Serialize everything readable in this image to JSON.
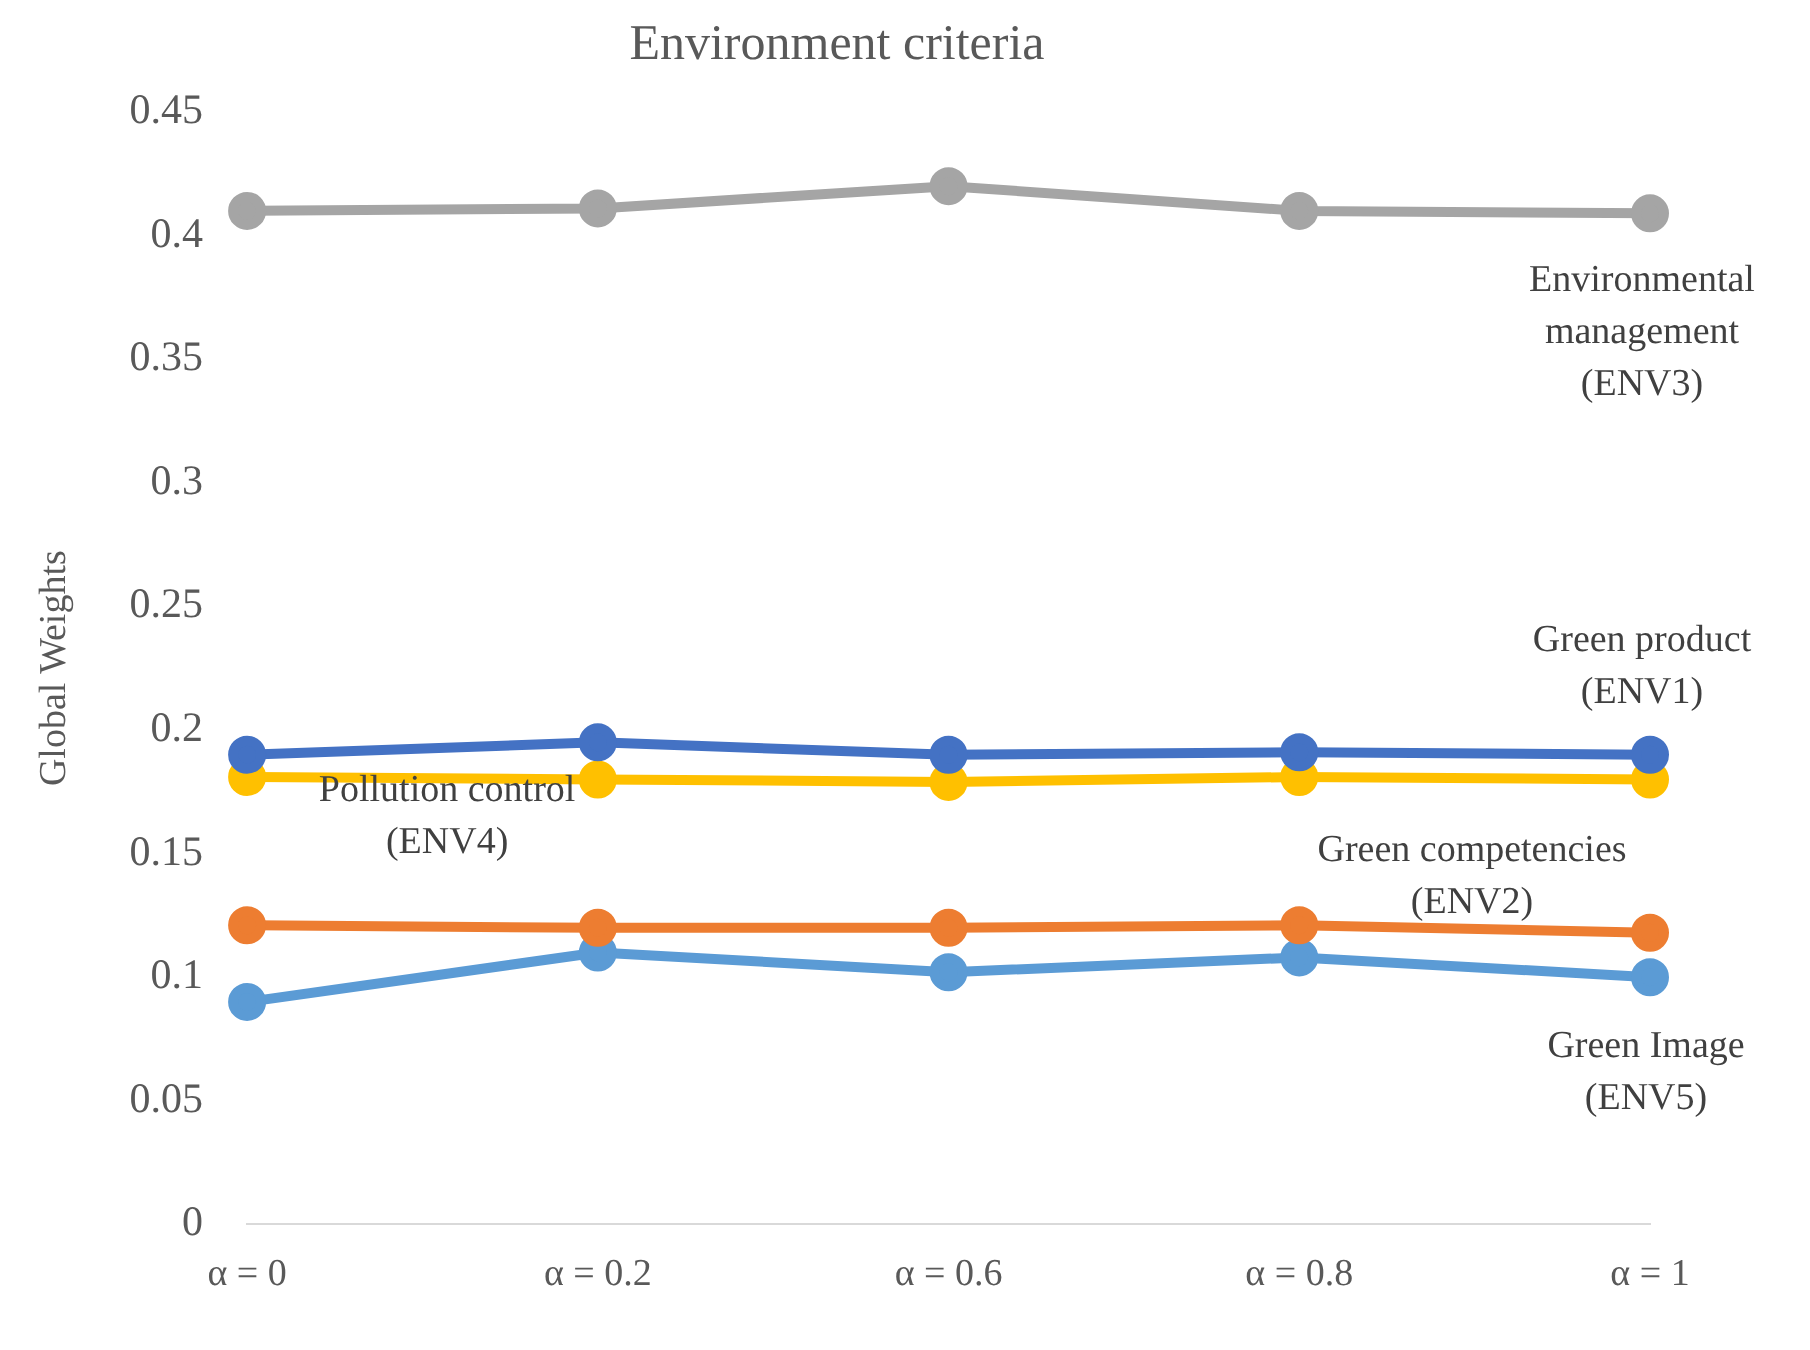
{
  "chart_data": {
    "type": "line",
    "title": "Environment criteria",
    "ylabel": "Global Weights",
    "categories": [
      "α = 0",
      "α = 0.2",
      "α = 0.6",
      "α = 0.8",
      "α = 1"
    ],
    "series": [
      {
        "name": "Environmental\nmanagement\n(ENV3)",
        "color": "#a5a5a5",
        "values": [
          0.41,
          0.411,
          0.42,
          0.41,
          0.409
        ]
      },
      {
        "name": "Green product\n(ENV1)",
        "color": "#4472c4",
        "values": [
          0.19,
          0.195,
          0.19,
          0.191,
          0.19
        ]
      },
      {
        "name": "Pollution control\n(ENV4)",
        "color": "#ffc000",
        "values": [
          0.181,
          0.18,
          0.179,
          0.181,
          0.18
        ]
      },
      {
        "name": "Green competencies\n(ENV2)",
        "color": "#ed7d31",
        "values": [
          0.121,
          0.12,
          0.12,
          0.121,
          0.118
        ]
      },
      {
        "name": "Green Image\n(ENV5)",
        "color": "#5b9bd5",
        "values": [
          0.09,
          0.11,
          0.102,
          0.108,
          0.1
        ]
      }
    ],
    "ylim": [
      0,
      0.45
    ],
    "yticks": [
      0,
      0.05,
      0.1,
      0.15,
      0.2,
      0.25,
      0.3,
      0.35,
      0.4,
      0.45
    ],
    "grid": false,
    "legend": false,
    "marker": "circle",
    "line_style": "solid"
  }
}
